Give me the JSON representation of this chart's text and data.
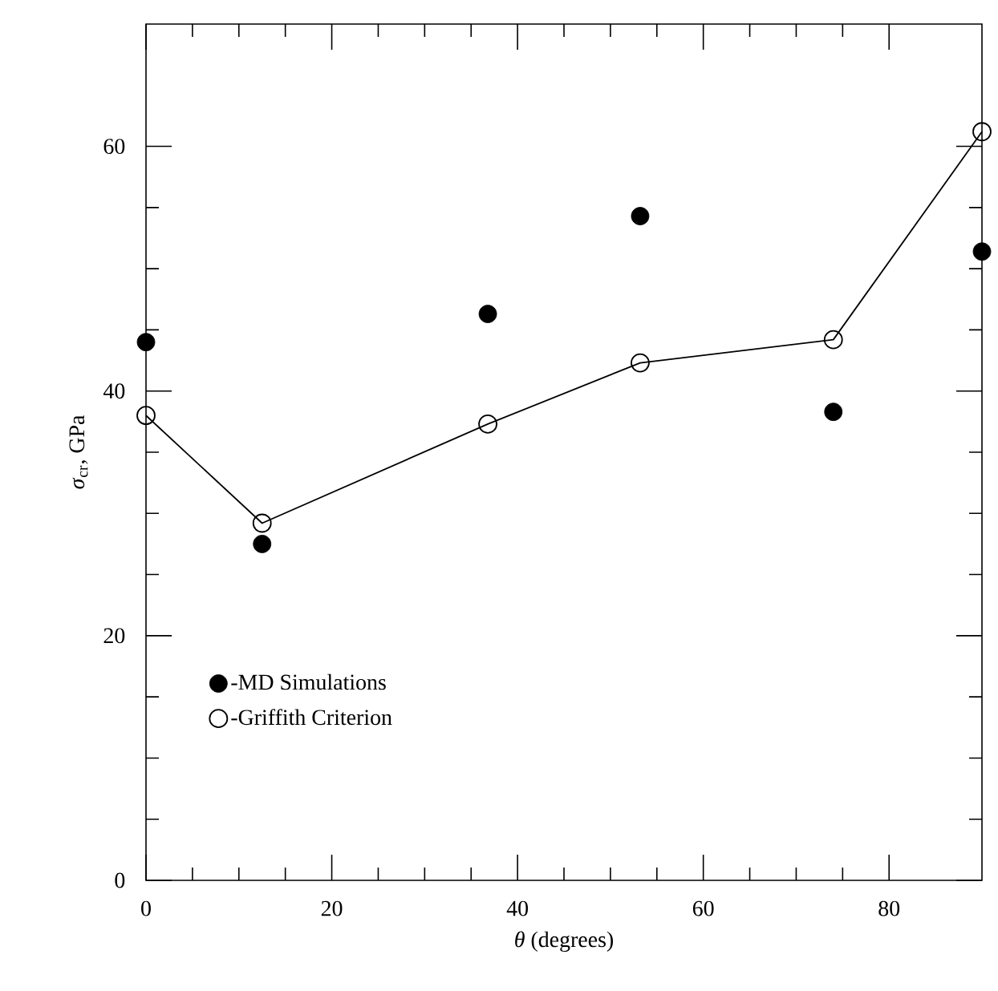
{
  "chart_data": {
    "type": "scatter",
    "xlabel": "*θ* (degrees)",
    "ylabel": "*σ*$_{cr}$, GPa",
    "x": [
      0,
      12.5,
      36.8,
      53.2,
      74,
      90
    ],
    "series": [
      {
        "name": "-MD Simulations",
        "marker": "circle",
        "color": "#000000",
        "values": [
          44,
          27.5,
          46.3,
          54.3,
          38.3,
          51.4
        ]
      },
      {
        "name": "-Griffith Criterion",
        "type": "line",
        "marker": "circle",
        "color": "#000000",
        "values": [
          38,
          29.2,
          37.3,
          42.3,
          44.2,
          61.2
        ]
      }
    ],
    "xlim": [
      0,
      90
    ],
    "ylim": [
      0,
      70
    ],
    "xticks": [
      0,
      20,
      40,
      60,
      80
    ],
    "yticks": [
      0,
      20,
      40,
      60
    ],
    "grid": false,
    "legend": "bottom left"
  }
}
